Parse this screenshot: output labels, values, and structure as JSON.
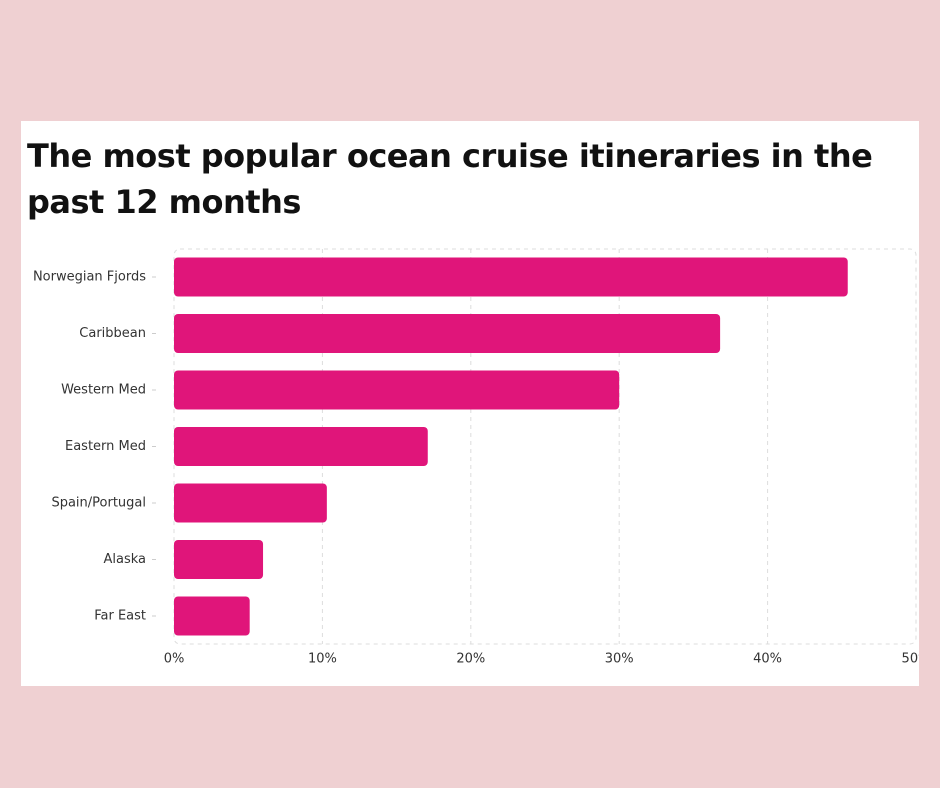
{
  "chart_data": {
    "type": "bar",
    "orientation": "horizontal",
    "title": "The most popular ocean cruise itineraries in the past 12 months",
    "categories": [
      "Norwegian Fjords",
      "Caribbean",
      "Western Med",
      "Eastern Med",
      "Spain/Portugal",
      "Alaska",
      "Far East"
    ],
    "values": [
      45.4,
      36.8,
      30,
      17.1,
      10.3,
      6,
      5.1
    ],
    "x_ticks": [
      "0%",
      "10%",
      "20%",
      "30%",
      "40%",
      "50%"
    ],
    "xlim": [
      0,
      50
    ],
    "grid": true,
    "legend": "none",
    "bar_color": "#e0157a"
  }
}
